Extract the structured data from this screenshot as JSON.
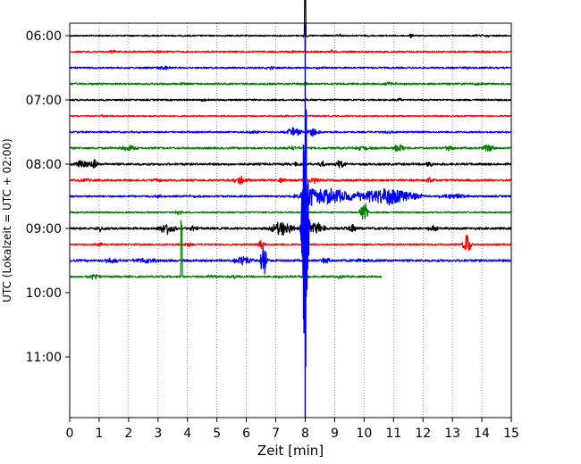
{
  "chart_data": {
    "type": "line",
    "xlabel": "Zeit  [min]",
    "ylabel": "UTC (Lokalzeit = UTC + 02:00)",
    "xlim": [
      0,
      15
    ],
    "x_ticks": [
      0,
      1,
      2,
      3,
      4,
      5,
      6,
      7,
      8,
      9,
      10,
      11,
      12,
      13,
      14,
      15
    ],
    "ylim_minutes": [
      -15,
      360
    ],
    "y_tick_labels": [
      "06:00",
      "07:00",
      "08:00",
      "09:00",
      "10:00",
      "11:00"
    ],
    "y_tick_minutes": [
      0,
      60,
      120,
      180,
      240,
      300
    ],
    "grid": "vertical dotted",
    "color_cycle": [
      "#000000",
      "#ff0000",
      "#0000ff",
      "#008000"
    ],
    "traces": [
      {
        "start": "06:00",
        "color": "#000000",
        "noise": 0.8,
        "x_end": 15,
        "events": [
          {
            "x": 8.0,
            "amp": 2.5,
            "dur": 0.1
          },
          {
            "x": 8.0,
            "amp": -60,
            "dur": 0.05
          },
          {
            "x": 9.2,
            "amp": 1.2,
            "dur": 0.2
          },
          {
            "x": 11.6,
            "amp": 2.5,
            "dur": 0.1
          },
          {
            "x": 14.0,
            "amp": 1.2,
            "dur": 0.4
          }
        ]
      },
      {
        "start": "06:15",
        "color": "#ff0000",
        "noise": 0.9,
        "x_end": 15,
        "events": [
          {
            "x": 1.5,
            "amp": 1.5,
            "dur": 0.3
          },
          {
            "x": 3.0,
            "amp": 1.5,
            "dur": 0.2
          },
          {
            "x": 7.5,
            "amp": 1.2,
            "dur": 0.2
          },
          {
            "x": 8.9,
            "amp": 1.5,
            "dur": 0.2
          },
          {
            "x": 14.2,
            "amp": 1.5,
            "dur": 0.2
          }
        ]
      },
      {
        "start": "06:30",
        "color": "#0000ff",
        "noise": 0.9,
        "x_end": 15,
        "events": [
          {
            "x": 3.2,
            "amp": 2,
            "dur": 0.4
          },
          {
            "x": 6.8,
            "amp": 1.5,
            "dur": 0.3
          },
          {
            "x": 8.5,
            "amp": 1.5,
            "dur": 0.3
          },
          {
            "x": 13.5,
            "amp": 1.5,
            "dur": 0.3
          }
        ]
      },
      {
        "start": "06:45",
        "color": "#008000",
        "noise": 1.0,
        "x_end": 15,
        "events": [
          {
            "x": 3.8,
            "amp": 1.5,
            "dur": 0.2
          },
          {
            "x": 7.9,
            "amp": 2,
            "dur": 0.3
          },
          {
            "x": 10.9,
            "amp": 1.5,
            "dur": 0.3
          },
          {
            "x": 13.9,
            "amp": 1.5,
            "dur": 0.4
          }
        ]
      },
      {
        "start": "07:00",
        "color": "#000000",
        "noise": 0.9,
        "x_end": 15,
        "events": [
          {
            "x": 4.5,
            "amp": 1.2,
            "dur": 0.2
          },
          {
            "x": 8.0,
            "amp": 1.5,
            "dur": 0.2
          },
          {
            "x": 11.2,
            "amp": 1.5,
            "dur": 0.2
          }
        ]
      },
      {
        "start": "07:15",
        "color": "#ff0000",
        "noise": 0.7,
        "x_end": 15,
        "events": [
          {
            "x": 1.1,
            "amp": 1.2,
            "dur": 0.2
          },
          {
            "x": 7.3,
            "amp": 1.2,
            "dur": 0.2
          }
        ]
      },
      {
        "start": "07:30",
        "color": "#0000ff",
        "noise": 0.9,
        "x_end": 15,
        "events": [
          {
            "x": 6.2,
            "amp": 1.5,
            "dur": 0.3
          },
          {
            "x": 7.6,
            "amp": 5,
            "dur": 0.4
          },
          {
            "x": 8.3,
            "amp": 5,
            "dur": 0.3
          },
          {
            "x": 10.8,
            "amp": 1.5,
            "dur": 0.3
          }
        ]
      },
      {
        "start": "07:45",
        "color": "#008000",
        "noise": 1.1,
        "x_end": 15,
        "events": [
          {
            "x": 2.0,
            "amp": 4,
            "dur": 0.4
          },
          {
            "x": 7.6,
            "amp": 2,
            "dur": 0.3
          },
          {
            "x": 10.0,
            "amp": 2.5,
            "dur": 0.5
          },
          {
            "x": 11.2,
            "amp": 5,
            "dur": 0.3
          },
          {
            "x": 12.9,
            "amp": 3,
            "dur": 0.2
          },
          {
            "x": 14.2,
            "amp": 5,
            "dur": 0.3
          }
        ]
      },
      {
        "start": "08:00",
        "color": "#000000",
        "noise": 1.2,
        "x_end": 15,
        "events": [
          {
            "x": 0.4,
            "amp": 5,
            "dur": 0.4
          },
          {
            "x": 0.85,
            "amp": 7,
            "dur": 0.15
          },
          {
            "x": 7.7,
            "amp": 2,
            "dur": 0.2
          },
          {
            "x": 8.6,
            "amp": 3,
            "dur": 0.2
          },
          {
            "x": 9.2,
            "amp": 4,
            "dur": 0.3
          },
          {
            "x": 12.2,
            "amp": 3,
            "dur": 0.2
          }
        ]
      },
      {
        "start": "08:15",
        "color": "#ff0000",
        "noise": 1.1,
        "x_end": 15,
        "events": [
          {
            "x": 0.5,
            "amp": 2,
            "dur": 0.3
          },
          {
            "x": 3.0,
            "amp": 2,
            "dur": 0.2
          },
          {
            "x": 5.8,
            "amp": 4,
            "dur": 0.4
          },
          {
            "x": 7.2,
            "amp": 2,
            "dur": 0.2
          },
          {
            "x": 8.3,
            "amp": 3,
            "dur": 0.3
          },
          {
            "x": 12.2,
            "amp": 3,
            "dur": 0.3
          }
        ]
      },
      {
        "start": "08:30",
        "color": "#0000ff",
        "noise": 1.0,
        "x_end": 15,
        "events": [
          {
            "x": 3.0,
            "amp": 2,
            "dur": 0.2
          },
          {
            "x": 4.2,
            "amp": 2,
            "dur": 0.3
          },
          {
            "x": 8.1,
            "amp": 14,
            "dur": 0.3
          },
          {
            "x": 8.8,
            "amp": 9,
            "dur": 1.4
          },
          {
            "x": 10.8,
            "amp": 10,
            "dur": 1.4
          },
          {
            "x": 13.0,
            "amp": 3,
            "dur": 0.8
          }
        ]
      },
      {
        "start": "08:45",
        "color": "#008000",
        "noise": 0.8,
        "x_end": 15,
        "events": [
          {
            "x": 3.7,
            "amp": 3,
            "dur": 0.2
          },
          {
            "x": 10.0,
            "amp": 14,
            "dur": 0.2
          }
        ]
      },
      {
        "start": "09:00",
        "color": "#000000",
        "noise": 1.2,
        "x_end": 15,
        "events": [
          {
            "x": 1.0,
            "amp": 3,
            "dur": 0.3
          },
          {
            "x": 3.3,
            "amp": 7,
            "dur": 0.4
          },
          {
            "x": 4.2,
            "amp": 3,
            "dur": 0.2
          },
          {
            "x": 7.2,
            "amp": 8,
            "dur": 0.6
          },
          {
            "x": 8.4,
            "amp": 7,
            "dur": 0.4
          },
          {
            "x": 9.6,
            "amp": 5,
            "dur": 0.3
          },
          {
            "x": 12.3,
            "amp": 3,
            "dur": 0.3
          }
        ]
      },
      {
        "start": "09:15",
        "color": "#ff0000",
        "noise": 0.9,
        "x_end": 15,
        "events": [
          {
            "x": 1.0,
            "amp": 2,
            "dur": 0.2
          },
          {
            "x": 4.0,
            "amp": 3,
            "dur": 0.2
          },
          {
            "x": 6.5,
            "amp": 5,
            "dur": 0.2
          },
          {
            "x": 13.5,
            "amp": 12,
            "dur": 0.2
          }
        ]
      },
      {
        "start": "09:30",
        "color": "#0000ff",
        "noise": 1.2,
        "x_end": 15,
        "events": [
          {
            "x": 1.4,
            "amp": 3,
            "dur": 0.4
          },
          {
            "x": 2.6,
            "amp": 3,
            "dur": 0.6
          },
          {
            "x": 5.9,
            "amp": 6,
            "dur": 0.4
          },
          {
            "x": 6.6,
            "amp": 28,
            "dur": 0.15
          },
          {
            "x": 8.7,
            "amp": 3,
            "dur": 0.3
          },
          {
            "x": 9.9,
            "amp": 2,
            "dur": 0.3
          }
        ]
      },
      {
        "start": "09:45",
        "color": "#008000",
        "noise": 1.0,
        "x_end": 10.6,
        "events": [
          {
            "x": 0.8,
            "amp": 3,
            "dur": 0.3
          },
          {
            "x": 3.8,
            "amp": -80,
            "dur": 0.05
          },
          {
            "x": 4.8,
            "amp": 2,
            "dur": 0.3
          },
          {
            "x": 5.6,
            "amp": 2,
            "dur": 0.3
          },
          {
            "x": 7.1,
            "amp": 2,
            "dur": 0.3
          },
          {
            "x": 8.0,
            "amp": 3,
            "dur": 0.2
          },
          {
            "x": 9.2,
            "amp": 2,
            "dur": 0.2
          }
        ]
      }
    ],
    "big_events": [
      {
        "start": "06:00",
        "color": "#000000",
        "x": 8.0
      },
      {
        "start": "09:00",
        "color": "#0000ff",
        "x": 8.0,
        "amp": 200,
        "dur": 0.2
      }
    ]
  }
}
